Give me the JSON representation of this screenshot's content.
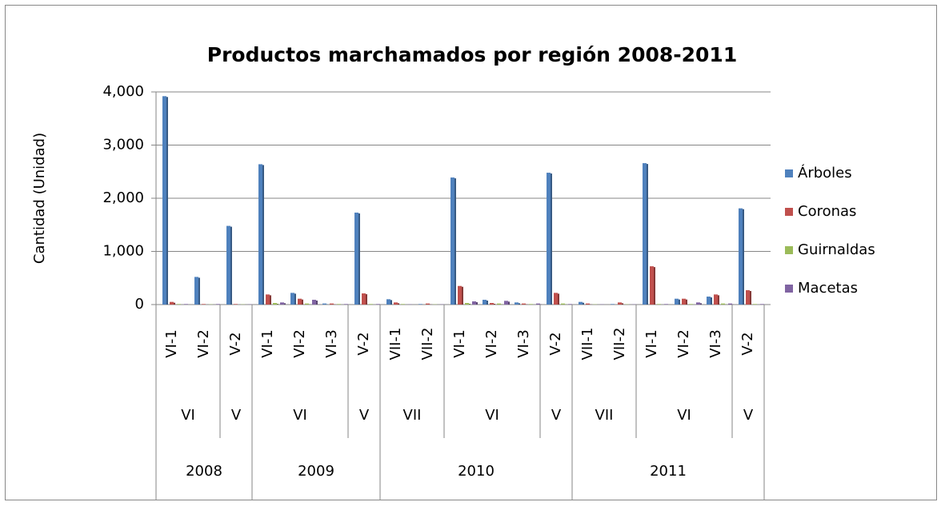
{
  "chart_data": {
    "type": "bar",
    "title": "Productos marchamados por región 2008-2011",
    "y_label": "Cantidad (Unidad)",
    "years": [
      {
        "label": "2008",
        "regions": [
          {
            "label": "VI",
            "categories": [
              "VI-1",
              "VI-2"
            ]
          },
          {
            "label": "V",
            "categories": [
              "V-2"
            ]
          }
        ]
      },
      {
        "label": "2009",
        "regions": [
          {
            "label": "VI",
            "categories": [
              "VI-1",
              "VI-2",
              "VI-3"
            ]
          },
          {
            "label": "V",
            "categories": [
              "V-2"
            ]
          }
        ]
      },
      {
        "label": "2010",
        "regions": [
          {
            "label": "VII",
            "categories": [
              "VII-1",
              "VII-2"
            ]
          },
          {
            "label": "VI",
            "categories": [
              "VI-1",
              "VI-2",
              "VI-3"
            ]
          },
          {
            "label": "V",
            "categories": [
              "V-2"
            ]
          }
        ]
      },
      {
        "label": "2011",
        "regions": [
          {
            "label": "VII",
            "categories": [
              "VII-1",
              "VII-2"
            ]
          },
          {
            "label": "VI",
            "categories": [
              "VI-1",
              "VI-2",
              "VI-3"
            ]
          },
          {
            "label": "V",
            "categories": [
              "V-2"
            ]
          }
        ]
      }
    ],
    "series": [
      {
        "name": "Árboles",
        "color": "#4f81bd",
        "values": [
          3920,
          520,
          1480,
          2640,
          220,
          20,
          1730,
          100,
          10,
          2390,
          90,
          40,
          2480,
          50,
          10,
          2660,
          110,
          150,
          1810
        ]
      },
      {
        "name": "Coronas",
        "color": "#c0504d",
        "values": [
          50,
          10,
          10,
          190,
          110,
          20,
          210,
          40,
          20,
          350,
          30,
          20,
          220,
          20,
          40,
          720,
          110,
          190,
          270
        ]
      },
      {
        "name": "Guirnaldas",
        "color": "#9bbb59",
        "values": [
          10,
          5,
          5,
          30,
          20,
          10,
          10,
          10,
          5,
          30,
          20,
          10,
          20,
          5,
          5,
          10,
          10,
          20,
          10
        ]
      },
      {
        "name": "Macetas",
        "color": "#8064a2",
        "values": [
          10,
          10,
          5,
          40,
          90,
          10,
          10,
          5,
          5,
          60,
          70,
          20,
          10,
          5,
          5,
          10,
          40,
          20,
          10
        ]
      }
    ],
    "ylim": [
      0,
      4000
    ],
    "yticks": [
      0,
      {
        "value": 1000,
        "label": "1,000"
      },
      {
        "value": 2000,
        "label": "2,000"
      },
      {
        "value": 3000,
        "label": "3,000"
      },
      {
        "value": 4000,
        "label": "4,000"
      }
    ],
    "grid": true,
    "legend": "right"
  }
}
